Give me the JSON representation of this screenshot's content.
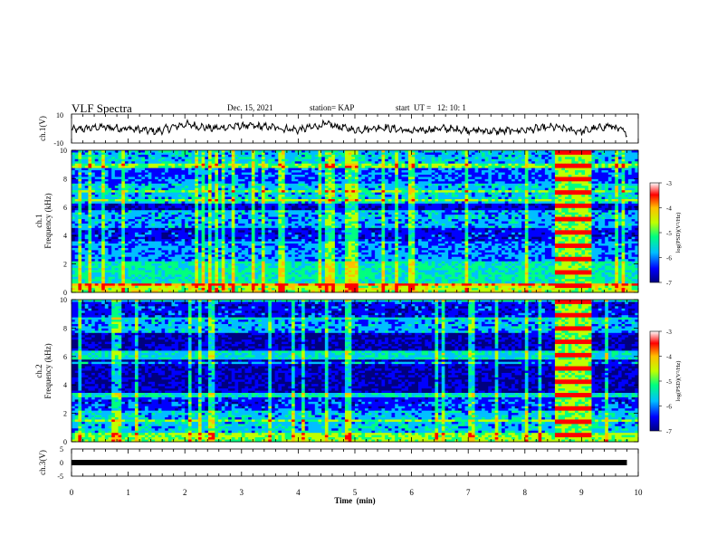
{
  "header": {
    "title": "VLF Spectra",
    "date": "Dec. 15, 2021",
    "station": "station= KAP",
    "start": "start  UT =   12: 10: 1"
  },
  "colorbar": {
    "label": "log(PSD)(V²/Hz)",
    "ticks": [
      "-3",
      "-4",
      "-5",
      "-6",
      "-7"
    ],
    "colors": [
      "#00007f",
      "#0000ff",
      "#00bfff",
      "#00ff7f",
      "#bfff00",
      "#ffbf00",
      "#ff0000",
      "#ffffff"
    ]
  },
  "chart_data": [
    {
      "type": "line",
      "panel": "ch1-waveform",
      "ylabel": "ch.1(V)",
      "ylim": [
        -10,
        10
      ],
      "yticks": [
        "10",
        "-10"
      ],
      "x": [
        0,
        0.5,
        1,
        1.5,
        2,
        2.5,
        3,
        3.5,
        4,
        4.5,
        5,
        5.5,
        6,
        6.5,
        7,
        7.5,
        8,
        8.5,
        9,
        9.5,
        9.8
      ],
      "y": [
        -1,
        1,
        0,
        -2,
        3,
        0,
        2,
        1,
        -1,
        3,
        -1,
        1,
        -2,
        0,
        -1,
        -2,
        -1,
        1,
        -2,
        2,
        -3
      ]
    },
    {
      "type": "heatmap",
      "panel": "ch1-spectrogram",
      "ylabel": "ch.1 Frequency (kHz)",
      "ylim": [
        0,
        10
      ],
      "yticks": [
        "0",
        "2",
        "4",
        "6",
        "8",
        "10"
      ],
      "xlim": [
        0,
        10
      ],
      "value_range": [
        -7,
        -3
      ]
    },
    {
      "type": "heatmap",
      "panel": "ch2-spectrogram",
      "ylabel": "ch.2 Frequency (kHz)",
      "ylim": [
        0,
        10
      ],
      "yticks": [
        "0",
        "2",
        "4",
        "6",
        "8",
        "10"
      ],
      "xlim": [
        0,
        10
      ],
      "value_range": [
        -7,
        -3
      ]
    },
    {
      "type": "line",
      "panel": "ch3-waveform",
      "ylabel": "ch.3(V)",
      "ylim": [
        -5,
        5
      ],
      "yticks": [
        "5",
        "0",
        "-5"
      ],
      "x": [
        0,
        9.8
      ],
      "y": [
        0,
        0
      ]
    }
  ],
  "xaxis": {
    "label": "Time  (min)",
    "ticks": [
      "0",
      "1",
      "2",
      "3",
      "4",
      "5",
      "6",
      "7",
      "8",
      "9",
      "10"
    ],
    "range": [
      0,
      10
    ]
  }
}
